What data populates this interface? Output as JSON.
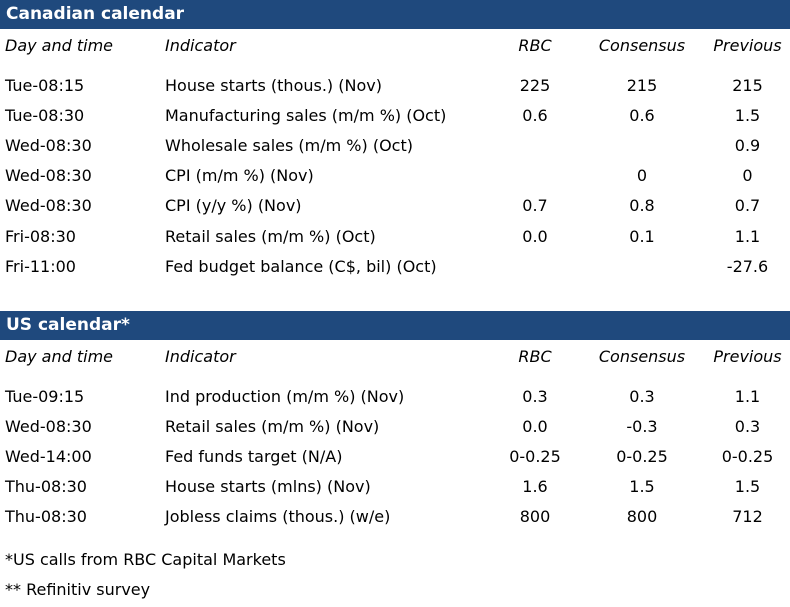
{
  "canadian": {
    "title": "Canadian calendar",
    "headers": {
      "day": "Day and time",
      "indicator": "Indicator",
      "rbc": "RBC",
      "consensus": "Consensus",
      "previous": "Previous"
    },
    "rows": [
      {
        "day": "Tue-08:15",
        "indicator": "House starts (thous.) (Nov)",
        "rbc": "225",
        "consensus": "215",
        "previous": "215"
      },
      {
        "day": "Tue-08:30",
        "indicator": "Manufacturing sales (m/m %) (Oct)",
        "rbc": "0.6",
        "consensus": "0.6",
        "previous": "1.5"
      },
      {
        "day": "Wed-08:30",
        "indicator": "Wholesale sales (m/m %) (Oct)",
        "rbc": "",
        "consensus": "",
        "previous": "0.9"
      },
      {
        "day": "Wed-08:30",
        "indicator": "CPI (m/m %) (Nov)",
        "rbc": "",
        "consensus": "0",
        "previous": "0"
      },
      {
        "day": "Wed-08:30",
        "indicator": "CPI (y/y %) (Nov)",
        "rbc": "0.7",
        "consensus": "0.8",
        "previous": "0.7"
      },
      {
        "day": "Fri-08:30",
        "indicator": "Retail sales (m/m %) (Oct)",
        "rbc": "0.0",
        "consensus": "0.1",
        "previous": "1.1"
      },
      {
        "day": "Fri-11:00",
        "indicator": "Fed budget balance (C$, bil) (Oct)",
        "rbc": "",
        "consensus": "",
        "previous": "-27.6"
      }
    ]
  },
  "us": {
    "title": "US calendar*",
    "headers": {
      "day": "Day and time",
      "indicator": "Indicator",
      "rbc": "RBC",
      "consensus": "Consensus",
      "previous": "Previous"
    },
    "rows": [
      {
        "day": "Tue-09:15",
        "indicator": "Ind production (m/m %) (Nov)",
        "rbc": "0.3",
        "consensus": "0.3",
        "previous": "1.1"
      },
      {
        "day": "Wed-08:30",
        "indicator": "Retail sales (m/m %) (Nov)",
        "rbc": "0.0",
        "consensus": "-0.3",
        "previous": "0.3"
      },
      {
        "day": "Wed-14:00",
        "indicator": "Fed funds target (N/A)",
        "rbc": "0-0.25",
        "consensus": "0-0.25",
        "previous": "0-0.25"
      },
      {
        "day": "Thu-08:30",
        "indicator": "House starts (mlns) (Nov)",
        "rbc": "1.6",
        "consensus": "1.5",
        "previous": "1.5"
      },
      {
        "day": "Thu-08:30",
        "indicator": "Jobless claims (thous.) (w/e)",
        "rbc": "800",
        "consensus": "800",
        "previous": "712"
      }
    ]
  },
  "footnotes": {
    "us_calls": "*US calls from RBC Capital Markets",
    "survey": "** Refinitiv survey"
  },
  "colors": {
    "header_bar": "#1f497d"
  }
}
